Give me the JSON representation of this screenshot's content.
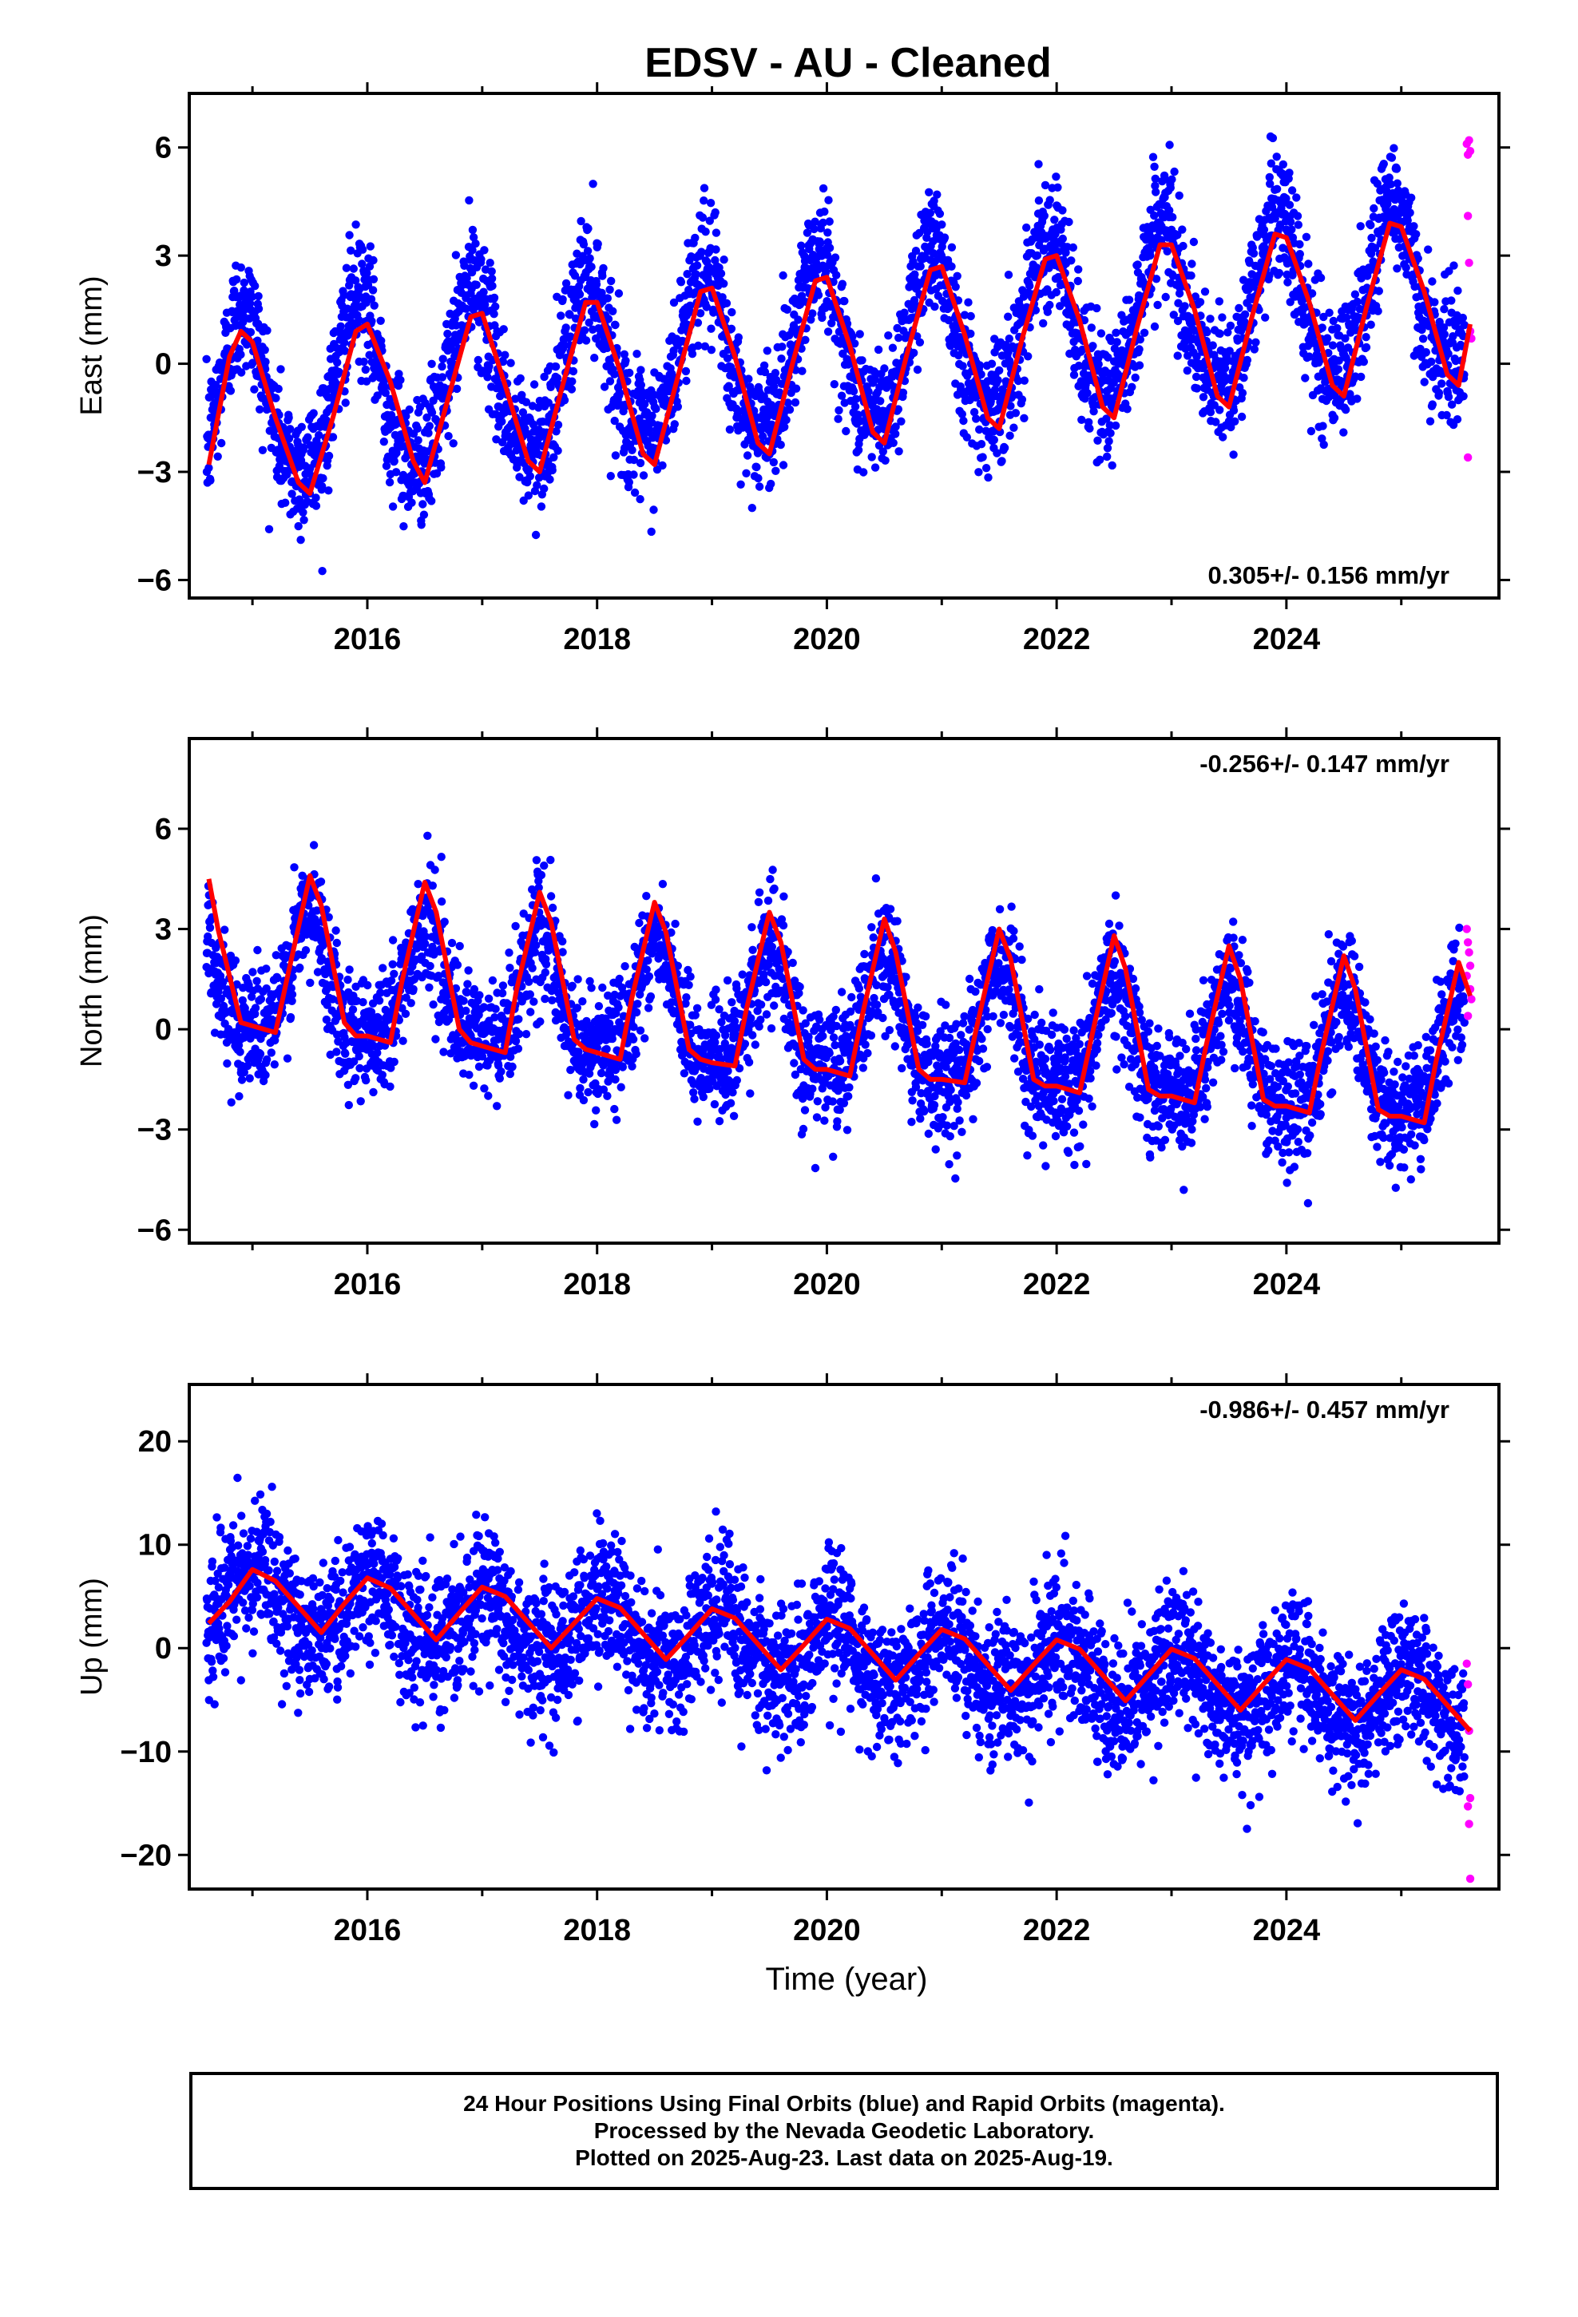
{
  "title": "EDSV  - AU - Cleaned",
  "colors": {
    "final": "#0000ff",
    "rapid": "#ff00ff",
    "model": "#ff0000",
    "frame": "#000000"
  },
  "xaxis_label": "Time (year)",
  "caption": {
    "line1": "24 Hour Positions Using Final Orbits (blue) and Rapid Orbits (magenta).",
    "line2": "Processed by the Nevada Geodetic Laboratory.",
    "line3": "Plotted on 2025-Aug-23. Last data on 2025-Aug-19."
  },
  "chart_data": [
    {
      "type": "scatter",
      "name": "east",
      "ylabel": "East (mm)",
      "xlim": [
        2014.45,
        2025.85
      ],
      "ylim": [
        -6.5,
        7.5
      ],
      "yticks": [
        -6,
        -3,
        0,
        3,
        6
      ],
      "xticks": [
        2016,
        2018,
        2020,
        2022,
        2024
      ],
      "grid": false,
      "rate_text": "0.305+/- 0.156 mm/yr",
      "rate_position": "bottom-right",
      "final_orbits": {
        "start": 2014.6,
        "end": 2025.55,
        "count": 3900,
        "trend_start": -1.2,
        "trend_rate": 0.305,
        "annual_amplitude": 2.3,
        "annual_peak_year_fraction": 0.92,
        "semiannual_amplitude": 0.3,
        "noise_sd": 0.9
      },
      "rapid_orbits_points": [
        [
          2025.57,
          6.1
        ],
        [
          2025.58,
          5.8
        ],
        [
          2025.59,
          6.2
        ],
        [
          2025.6,
          5.9
        ],
        [
          2025.58,
          4.1
        ],
        [
          2025.59,
          2.8
        ],
        [
          2025.6,
          0.9
        ],
        [
          2025.61,
          0.7
        ],
        [
          2025.58,
          -2.6
        ]
      ],
      "model_line": {
        "x": [
          2014.62,
          2014.8,
          2014.9,
          2015.0,
          2015.2,
          2015.4,
          2015.5,
          2015.7,
          2015.9,
          2016.0,
          2016.2,
          2016.4,
          2016.5,
          2016.7,
          2016.9,
          2017.0,
          2017.2,
          2017.4,
          2017.5,
          2017.7,
          2017.9,
          2018.0,
          2018.2,
          2018.4,
          2018.5,
          2018.7,
          2018.9,
          2019.0,
          2019.2,
          2019.4,
          2019.5,
          2019.7,
          2019.9,
          2020.0,
          2020.2,
          2020.4,
          2020.5,
          2020.7,
          2020.9,
          2021.0,
          2021.2,
          2021.4,
          2021.5,
          2021.7,
          2021.9,
          2022.0,
          2022.2,
          2022.4,
          2022.5,
          2022.7,
          2022.9,
          2023.0,
          2023.2,
          2023.4,
          2023.5,
          2023.7,
          2023.9,
          2024.0,
          2024.2,
          2024.4,
          2024.5,
          2024.7,
          2024.9,
          2025.0,
          2025.2,
          2025.4,
          2025.5,
          2025.6
        ],
        "y": [
          -2.8,
          0.2,
          0.9,
          0.6,
          -1.5,
          -3.3,
          -3.6,
          -1.5,
          0.9,
          1.1,
          -0.5,
          -2.7,
          -3.3,
          -1.0,
          1.3,
          1.4,
          -0.6,
          -2.7,
          -3.0,
          -0.6,
          1.7,
          1.7,
          -0.2,
          -2.5,
          -2.8,
          -0.4,
          2.0,
          2.1,
          0.2,
          -2.2,
          -2.5,
          0.0,
          2.3,
          2.4,
          0.5,
          -1.9,
          -2.2,
          0.3,
          2.6,
          2.7,
          0.8,
          -1.5,
          -1.8,
          0.7,
          2.9,
          3.0,
          1.2,
          -1.2,
          -1.5,
          1.0,
          3.3,
          3.3,
          1.5,
          -0.9,
          -1.2,
          1.3,
          3.6,
          3.5,
          1.7,
          -0.6,
          -0.9,
          1.6,
          3.9,
          3.8,
          2.0,
          -0.3,
          -0.6,
          1.1
        ]
      }
    },
    {
      "type": "scatter",
      "name": "north",
      "ylabel": "North (mm)",
      "xlim": [
        2014.45,
        2025.85
      ],
      "ylim": [
        -6.4,
        8.7
      ],
      "yticks": [
        -6,
        -3,
        0,
        3,
        6
      ],
      "xticks": [
        2016,
        2018,
        2020,
        2022,
        2024
      ],
      "grid": false,
      "rate_text": "-0.256+/- 0.147 mm/yr",
      "rate_position": "top-right",
      "final_orbits": {
        "start": 2014.6,
        "end": 2025.55,
        "count": 3900,
        "trend_start": 1.5,
        "trend_rate": -0.256,
        "annual_amplitude": 1.7,
        "annual_peak_year_fraction": 0.5,
        "semiannual_amplitude": 0.5,
        "noise_sd": 0.9
      },
      "rapid_orbits_points": [
        [
          2025.57,
          3.0
        ],
        [
          2025.58,
          2.6
        ],
        [
          2025.59,
          2.3
        ],
        [
          2025.6,
          1.9
        ],
        [
          2025.57,
          1.6
        ],
        [
          2025.6,
          1.2
        ],
        [
          2025.61,
          0.9
        ],
        [
          2025.58,
          0.4
        ]
      ],
      "model_line": {
        "x": [
          2014.62,
          2014.7,
          2014.9,
          2015.0,
          2015.2,
          2015.3,
          2015.5,
          2015.6,
          2015.8,
          2015.9,
          2016.0,
          2016.2,
          2016.3,
          2016.5,
          2016.6,
          2016.8,
          2016.9,
          2017.0,
          2017.2,
          2017.3,
          2017.5,
          2017.6,
          2017.8,
          2017.9,
          2018.0,
          2018.2,
          2018.3,
          2018.5,
          2018.6,
          2018.8,
          2018.9,
          2019.0,
          2019.2,
          2019.3,
          2019.5,
          2019.6,
          2019.8,
          2019.9,
          2020.0,
          2020.2,
          2020.3,
          2020.5,
          2020.6,
          2020.8,
          2020.9,
          2021.0,
          2021.2,
          2021.3,
          2021.5,
          2021.6,
          2021.8,
          2021.9,
          2022.0,
          2022.2,
          2022.3,
          2022.5,
          2022.6,
          2022.8,
          2022.9,
          2023.0,
          2023.2,
          2023.3,
          2023.5,
          2023.6,
          2023.8,
          2023.9,
          2024.0,
          2024.2,
          2024.3,
          2024.5,
          2024.6,
          2024.8,
          2024.9,
          2025.0,
          2025.2,
          2025.3,
          2025.5,
          2025.6
        ],
        "y": [
          4.5,
          3.0,
          0.2,
          0.1,
          -0.1,
          1.5,
          4.6,
          3.7,
          0.2,
          -0.2,
          -0.2,
          -0.4,
          1.4,
          4.4,
          3.5,
          0.0,
          -0.4,
          -0.5,
          -0.7,
          1.2,
          4.1,
          3.2,
          -0.3,
          -0.6,
          -0.7,
          -0.9,
          0.9,
          3.8,
          2.9,
          -0.6,
          -0.9,
          -1.0,
          -1.1,
          0.6,
          3.5,
          2.6,
          -0.9,
          -1.2,
          -1.2,
          -1.4,
          0.3,
          3.3,
          2.3,
          -1.2,
          -1.5,
          -1.5,
          -1.6,
          0.0,
          3.0,
          2.1,
          -1.5,
          -1.7,
          -1.7,
          -1.9,
          -0.3,
          2.8,
          1.8,
          -1.8,
          -2.0,
          -2.0,
          -2.2,
          -0.5,
          2.5,
          1.5,
          -2.1,
          -2.3,
          -2.3,
          -2.5,
          -0.8,
          2.2,
          1.2,
          -2.4,
          -2.6,
          -2.6,
          -2.8,
          -1.0,
          2.0,
          1.0
        ]
      }
    },
    {
      "type": "scatter",
      "name": "up",
      "ylabel": "Up (mm)",
      "xlim": [
        2014.45,
        2025.85
      ],
      "ylim": [
        -23.3,
        25.5
      ],
      "yticks": [
        -20,
        -10,
        0,
        10,
        20
      ],
      "xticks": [
        2016,
        2018,
        2020,
        2022,
        2024
      ],
      "xlabel": "Time (year)",
      "grid": false,
      "rate_text": "-0.986+/- 0.457 mm/yr",
      "rate_position": "top-right",
      "final_orbits": {
        "start": 2014.6,
        "end": 2025.55,
        "count": 3900,
        "trend_start": 5.0,
        "trend_rate": -0.986,
        "annual_amplitude": 3.0,
        "annual_peak_year_fraction": 0.05,
        "semiannual_amplitude": 0.5,
        "noise_sd": 3.3
      },
      "rapid_orbits_points": [
        [
          2025.57,
          -1.5
        ],
        [
          2025.58,
          -3.5
        ],
        [
          2025.59,
          -8.0
        ],
        [
          2025.6,
          -14.5
        ],
        [
          2025.58,
          -15.3
        ],
        [
          2025.59,
          -17.0
        ],
        [
          2025.6,
          -22.3
        ]
      ],
      "model_line": {
        "x": [
          2014.62,
          2014.8,
          2015.0,
          2015.2,
          2015.4,
          2015.6,
          2015.8,
          2016.0,
          2016.2,
          2016.4,
          2016.6,
          2016.8,
          2017.0,
          2017.2,
          2017.4,
          2017.6,
          2017.8,
          2018.0,
          2018.2,
          2018.4,
          2018.6,
          2018.8,
          2019.0,
          2019.2,
          2019.4,
          2019.6,
          2019.8,
          2020.0,
          2020.2,
          2020.4,
          2020.6,
          2020.8,
          2021.0,
          2021.2,
          2021.4,
          2021.6,
          2021.8,
          2022.0,
          2022.2,
          2022.4,
          2022.6,
          2022.8,
          2023.0,
          2023.2,
          2023.4,
          2023.6,
          2023.8,
          2024.0,
          2024.2,
          2024.4,
          2024.6,
          2024.8,
          2025.0,
          2025.2,
          2025.4,
          2025.6
        ],
        "y": [
          2.4,
          4.5,
          7.6,
          6.5,
          4.0,
          1.5,
          4.3,
          6.8,
          5.8,
          3.3,
          0.8,
          3.4,
          5.9,
          5.0,
          2.5,
          0.0,
          2.4,
          4.8,
          3.9,
          1.4,
          -1.1,
          1.3,
          3.8,
          2.9,
          0.4,
          -2.1,
          0.3,
          2.8,
          1.9,
          -0.6,
          -3.1,
          -0.6,
          1.8,
          0.9,
          -1.6,
          -4.1,
          -1.6,
          0.8,
          -0.1,
          -2.6,
          -5.1,
          -2.6,
          -0.1,
          -1.0,
          -3.5,
          -6.0,
          -3.5,
          -1.1,
          -2.0,
          -4.5,
          -7.0,
          -4.5,
          -2.1,
          -3.0,
          -5.5,
          -8.0
        ]
      }
    }
  ]
}
